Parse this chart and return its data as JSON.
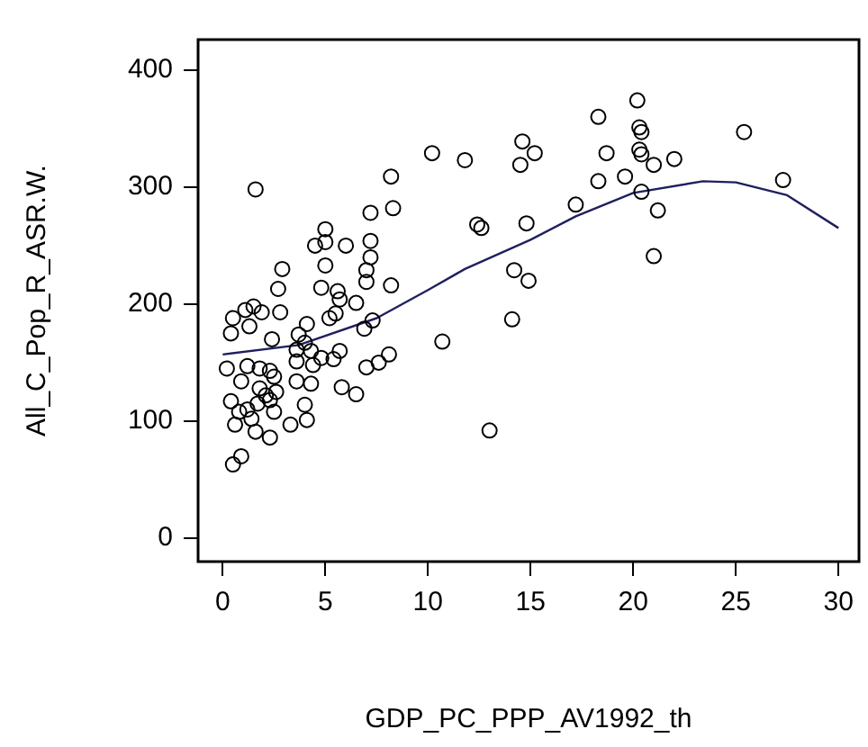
{
  "chart_data": {
    "type": "scatter",
    "xlabel": "GDP_PC_PPP_AV1992_th",
    "ylabel": "All_C_Pop_R_ASR.W.",
    "xlim": [
      -1.2,
      31
    ],
    "ylim": [
      -20,
      426
    ],
    "xticks": [
      0,
      5,
      10,
      15,
      20,
      25,
      30
    ],
    "yticks": [
      0,
      100,
      200,
      300,
      400
    ],
    "grid": false,
    "legend": false,
    "marker": "circle",
    "series": [
      {
        "color": "#000000",
        "x": [
          1.6,
          10.2,
          11.8,
          8.2,
          7.2,
          8.3,
          12.4,
          12.6,
          5.0,
          4.5,
          5.0,
          6.0,
          7.2,
          7.2,
          7.0,
          7.0,
          8.2,
          2.9,
          2.7,
          5.0,
          4.8,
          5.6,
          5.7,
          6.5,
          5.5,
          5.2,
          7.3,
          6.9,
          10.7,
          8.1,
          7.6,
          7.0,
          5.7,
          5.4,
          5.8,
          6.5,
          13.0,
          4.1,
          3.7,
          4.0,
          4.3,
          3.6,
          4.8,
          3.6,
          4.4,
          3.6,
          4.3,
          4.0,
          4.1,
          3.3,
          2.4,
          2.8,
          1.9,
          1.5,
          1.3,
          0.5,
          0.4,
          1.1,
          0.2,
          0.9,
          1.2,
          1.8,
          2.3,
          2.5,
          1.8,
          2.1,
          2.3,
          1.7,
          1.2,
          0.8,
          0.4,
          0.6,
          1.4,
          1.6,
          2.3,
          2.5,
          0.9,
          0.5,
          2.6,
          20.2,
          18.3,
          20.3,
          20.4,
          25.4,
          14.6,
          15.2,
          14.5,
          18.7,
          20.3,
          20.4,
          21.0,
          22.0,
          19.6,
          18.3,
          27.3,
          20.4,
          17.2,
          21.2,
          14.8,
          14.2,
          14.9,
          21.0,
          14.1
        ],
        "values": [
          298,
          329,
          323,
          309,
          278,
          282,
          268,
          265,
          264,
          250,
          253,
          250,
          254,
          240,
          229,
          219,
          216,
          230,
          213,
          233,
          214,
          211,
          204,
          201,
          192,
          188,
          186,
          179,
          168,
          157,
          150,
          146,
          160,
          153,
          129,
          123,
          92,
          183,
          174,
          167,
          160,
          161,
          154,
          151,
          148,
          134,
          132,
          114,
          101,
          97,
          170,
          193,
          193,
          198,
          181,
          188,
          175,
          195,
          145,
          134,
          147,
          145,
          143,
          138,
          128,
          122,
          118,
          115,
          110,
          108,
          117,
          97,
          102,
          91,
          86,
          108,
          70,
          63,
          125,
          374,
          360,
          351,
          347,
          347,
          339,
          329,
          319,
          329,
          332,
          328,
          319,
          324,
          309,
          305,
          306,
          296,
          285,
          280,
          269,
          229,
          220,
          241,
          187
        ]
      },
      {
        "type": "line",
        "color": "#1f1f5f",
        "marker": "none",
        "x": [
          0,
          3.7,
          7.5,
          10,
          11.8,
          15,
          17.2,
          20,
          23.4,
          25,
          27.5,
          30
        ],
        "values": [
          157,
          165,
          188,
          212,
          230,
          255,
          275,
          295,
          305,
          304,
          293,
          265
        ]
      }
    ]
  }
}
